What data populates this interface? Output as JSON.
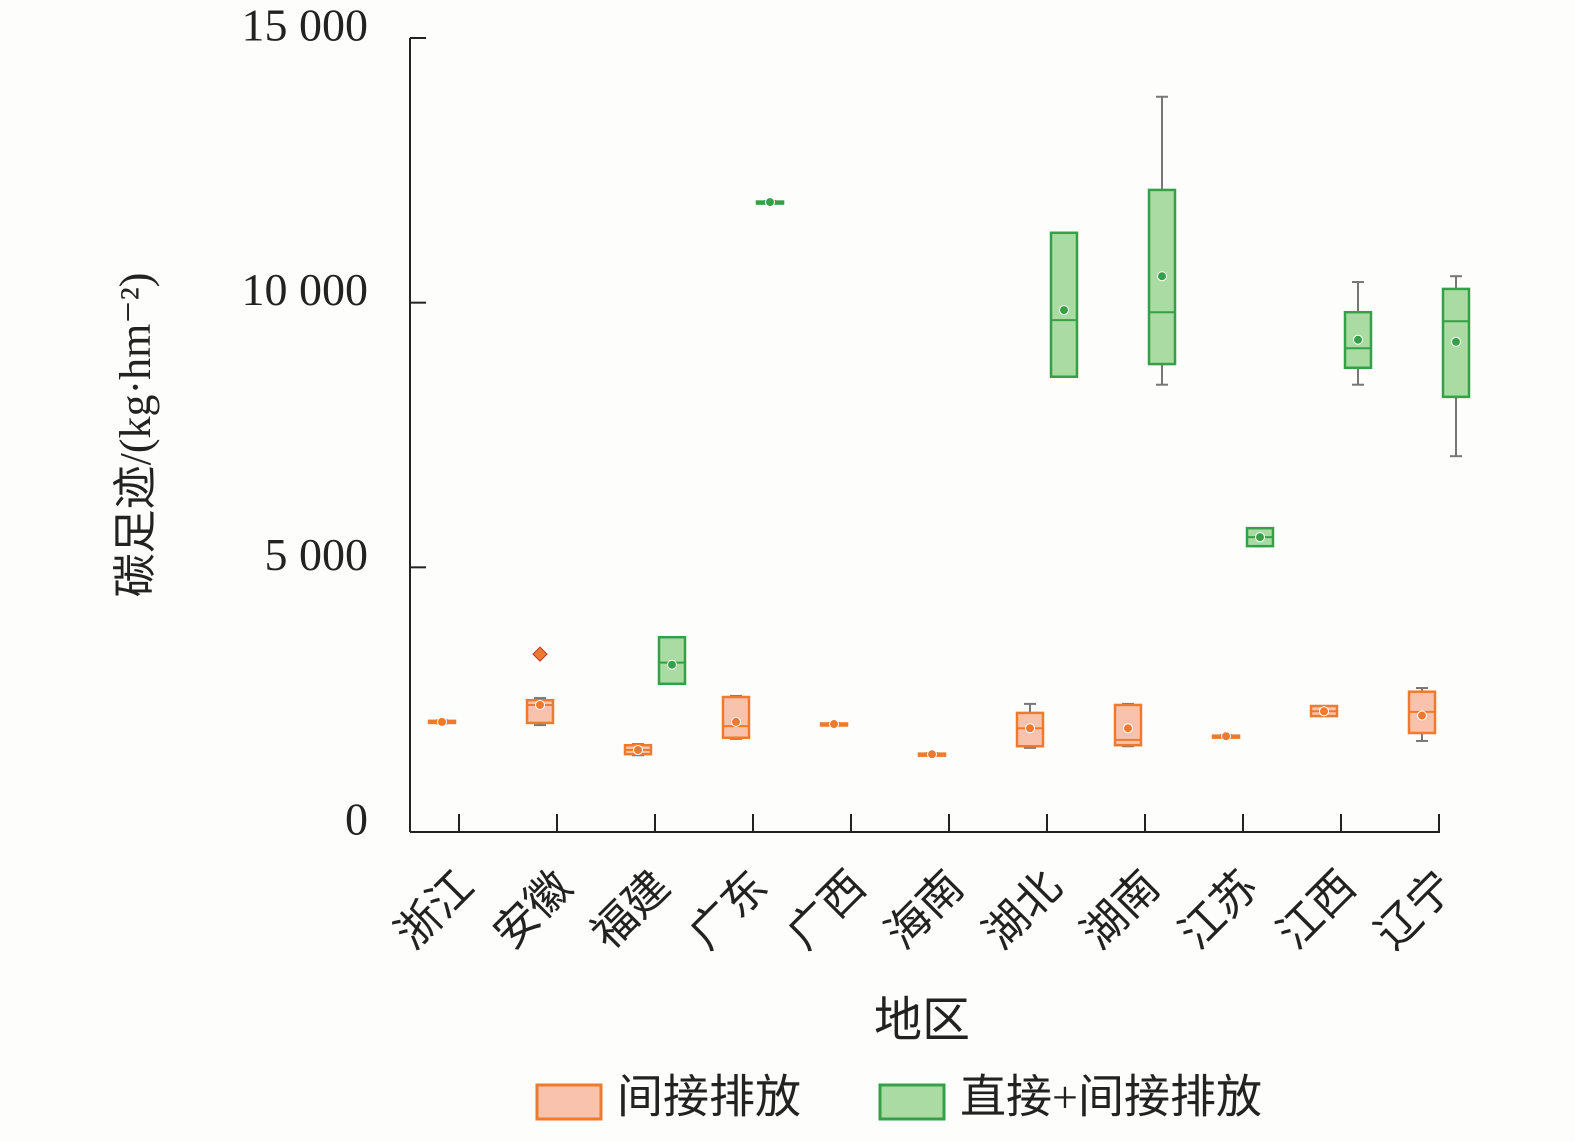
{
  "chart_data": {
    "type": "box",
    "title_y": "碳足迹/(kg·hm⁻²)",
    "xlabel": "地区",
    "categories": [
      "浙江",
      "安徽",
      "福建",
      "广东",
      "广西",
      "海南",
      "湖北",
      "湖南",
      "江苏",
      "江西",
      "辽宁"
    ],
    "ylim": [
      0,
      15000
    ],
    "yticks": [
      0,
      {
        "value": 5000,
        "label": "5 000"
      },
      {
        "value": 10000,
        "label": "10 000"
      },
      {
        "value": 15000,
        "label": "15 000"
      }
    ],
    "series": [
      {
        "name": "间接排放",
        "color": "#ee7a2e",
        "fill": "#f8c2ad",
        "boxes": [
          {
            "min": 2050,
            "q1": 2060,
            "median": 2080,
            "q3": 2100,
            "max": 2110,
            "mean": 2080
          },
          {
            "min": 2020,
            "q1": 2060,
            "median": 2400,
            "q3": 2490,
            "max": 2530,
            "mean": 2400,
            "outliers": [
              3360
            ]
          },
          {
            "min": 1450,
            "q1": 1470,
            "median": 1550,
            "q3": 1640,
            "max": 1660,
            "mean": 1550
          },
          {
            "min": 1760,
            "q1": 1780,
            "median": 2000,
            "q3": 2550,
            "max": 2570,
            "mean": 2080
          },
          {
            "min": 2020,
            "q1": 2030,
            "median": 2040,
            "q3": 2050,
            "max": 2060,
            "mean": 2040
          },
          {
            "min": 1450,
            "q1": 1460,
            "median": 1470,
            "q3": 1480,
            "max": 1490,
            "mean": 1470
          },
          {
            "min": 1590,
            "q1": 1620,
            "median": 1960,
            "q3": 2250,
            "max": 2420,
            "mean": 1960
          },
          {
            "min": 1620,
            "q1": 1640,
            "median": 1740,
            "q3": 2400,
            "max": 2420,
            "mean": 1960
          },
          {
            "min": 1790,
            "q1": 1800,
            "median": 1810,
            "q3": 1820,
            "max": 1830,
            "mean": 1810
          },
          {
            "min": 2190,
            "q1": 2190,
            "median": 2280,
            "q3": 2380,
            "max": 2380,
            "mean": 2280
          },
          {
            "min": 1720,
            "q1": 1870,
            "median": 2270,
            "q3": 2650,
            "max": 2720,
            "mean": 2200
          }
        ]
      },
      {
        "name": "直接+间接排放",
        "color": "#35a047",
        "fill": "#a9dba2",
        "boxes": [
          null,
          null,
          {
            "min": 2800,
            "q1": 2800,
            "median": 3200,
            "q3": 3680,
            "max": 3680,
            "mean": 3160
          },
          {
            "min": 11880,
            "q1": 11890,
            "median": 11900,
            "q3": 11910,
            "max": 11920,
            "mean": 11900
          },
          null,
          null,
          {
            "min": 8600,
            "q1": 8600,
            "median": 9670,
            "q3": 11320,
            "max": 11320,
            "mean": 9860
          },
          {
            "min": 8450,
            "q1": 8840,
            "median": 9820,
            "q3": 12130,
            "max": 13890,
            "mean": 10500
          },
          {
            "min": 5400,
            "q1": 5400,
            "median": 5570,
            "q3": 5740,
            "max": 5740,
            "mean": 5570
          },
          {
            "min": 8450,
            "q1": 8770,
            "median": 9140,
            "q3": 9820,
            "max": 10390,
            "mean": 9300
          },
          {
            "min": 7100,
            "q1": 8220,
            "median": 9650,
            "q3": 10260,
            "max": 10500,
            "mean": 9260
          }
        ]
      }
    ]
  }
}
